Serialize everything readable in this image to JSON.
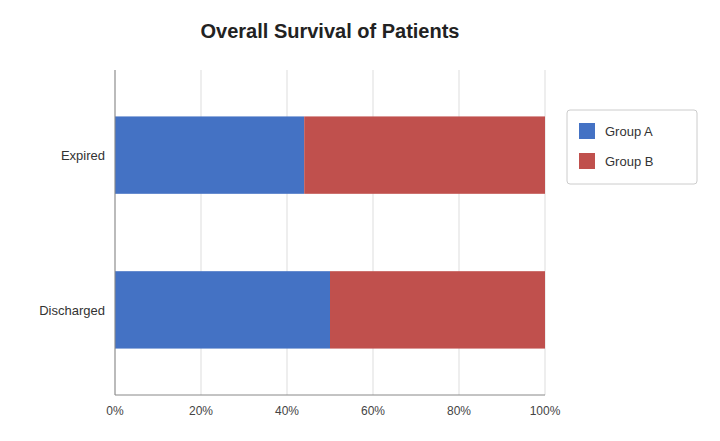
{
  "chart_data": {
    "type": "bar",
    "orientation": "horizontal",
    "stacked": true,
    "title": "Overall Survival of Patients",
    "categories": [
      "Discharged",
      "Expired"
    ],
    "series": [
      {
        "name": "Group A",
        "color": "#4472C4",
        "values": [
          0.5,
          0.44
        ]
      },
      {
        "name": "Group B",
        "color": "#C0504D",
        "values": [
          0.5,
          0.56
        ]
      }
    ],
    "xlim": [
      0,
      1.0
    ],
    "xticks": [
      {
        "value": 0.0,
        "label": "0%"
      },
      {
        "value": 0.2,
        "label": "20%"
      },
      {
        "value": 0.4,
        "label": "40%"
      },
      {
        "value": 0.6,
        "label": "60%"
      },
      {
        "value": 0.8,
        "label": "80%"
      },
      {
        "value": 1.0,
        "label": "100%"
      }
    ],
    "grid": true,
    "legend": "right"
  }
}
